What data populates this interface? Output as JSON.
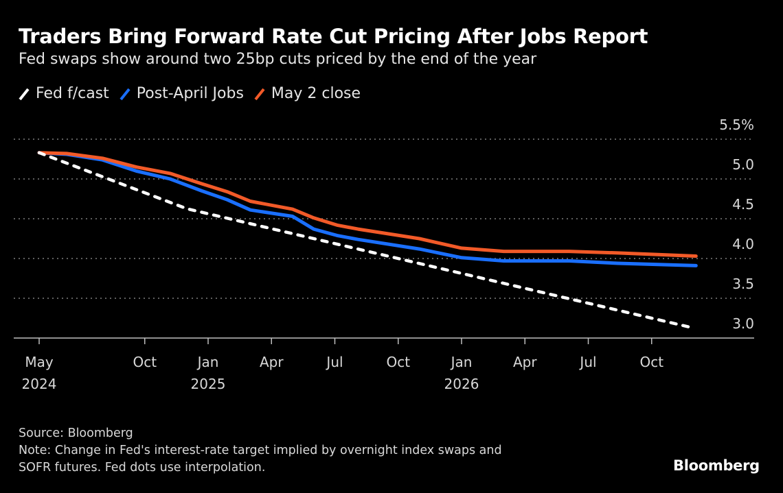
{
  "title": "Traders Bring Forward Rate Cut Pricing After Jobs Report",
  "subtitle": "Fed swaps show around two 25bp cuts priced by the end of the year",
  "footer": {
    "source": "Source: Bloomberg",
    "note_line1": "Note: Change in Fed's interest-rate target implied by overnight index swaps and",
    "note_line2": "SOFR futures. Fed dots use interpolation."
  },
  "logo": "Bloomberg",
  "colors": {
    "fed": "#ffffff",
    "post_april": "#1a6fff",
    "may2": "#f25a28",
    "grid": "#808080",
    "text": "#d9d9d9"
  },
  "chart_data": {
    "type": "line",
    "title": "Traders Bring Forward Rate Cut Pricing After Jobs Report",
    "x_unit": "months since May 2024",
    "xlim": [
      0,
      31
    ],
    "ylim": [
      3.0,
      5.5
    ],
    "y_ticks": [
      {
        "value": 5.5,
        "label": "5.5%"
      },
      {
        "value": 5.0,
        "label": "5.0"
      },
      {
        "value": 4.5,
        "label": "4.5"
      },
      {
        "value": 4.0,
        "label": "4.0"
      },
      {
        "value": 3.5,
        "label": "3.5"
      },
      {
        "value": 3.0,
        "label": "3.0"
      }
    ],
    "x_ticks": [
      {
        "month": 0,
        "label": "May",
        "year": "2024"
      },
      {
        "month": 5,
        "label": "Oct",
        "year": ""
      },
      {
        "month": 8,
        "label": "Jan",
        "year": "2025"
      },
      {
        "month": 11,
        "label": "Apr",
        "year": ""
      },
      {
        "month": 14,
        "label": "Jul",
        "year": ""
      },
      {
        "month": 17,
        "label": "Oct",
        "year": ""
      },
      {
        "month": 20,
        "label": "Jan",
        "year": "2026"
      },
      {
        "month": 23,
        "label": "Apr",
        "year": ""
      },
      {
        "month": 26,
        "label": "Jul",
        "year": ""
      },
      {
        "month": 29,
        "label": "Oct",
        "year": ""
      }
    ],
    "grid": true,
    "legend_position": "top-left",
    "series": [
      {
        "name": "Fed f/cast",
        "color_key": "fed",
        "dashed": true,
        "points": [
          [
            0,
            5.33
          ],
          [
            7,
            4.625
          ],
          [
            19,
            3.875
          ],
          [
            31,
            3.125
          ]
        ]
      },
      {
        "name": "Post-April Jobs",
        "color_key": "post_april",
        "dashed": false,
        "points": [
          [
            0,
            5.33
          ],
          [
            1.3,
            5.31
          ],
          [
            3.0,
            5.24
          ],
          [
            4.6,
            5.1
          ],
          [
            6.2,
            5.0
          ],
          [
            7.7,
            4.85
          ],
          [
            8.9,
            4.74
          ],
          [
            10.0,
            4.61
          ],
          [
            12.0,
            4.53
          ],
          [
            13.0,
            4.37
          ],
          [
            14.1,
            4.29
          ],
          [
            15.1,
            4.24
          ],
          [
            18.0,
            4.12
          ],
          [
            20.0,
            4.01
          ],
          [
            22.0,
            3.97
          ],
          [
            25.1,
            3.97
          ],
          [
            27.4,
            3.94
          ],
          [
            31.1,
            3.91
          ]
        ]
      },
      {
        "name": "May 2 close",
        "color_key": "may2",
        "dashed": false,
        "points": [
          [
            0,
            5.33
          ],
          [
            1.3,
            5.32
          ],
          [
            3.0,
            5.26
          ],
          [
            4.6,
            5.15
          ],
          [
            6.2,
            5.07
          ],
          [
            7.7,
            4.94
          ],
          [
            8.9,
            4.84
          ],
          [
            10.0,
            4.72
          ],
          [
            12.0,
            4.62
          ],
          [
            13.0,
            4.51
          ],
          [
            14.1,
            4.42
          ],
          [
            15.1,
            4.37
          ],
          [
            18.0,
            4.25
          ],
          [
            20.0,
            4.13
          ],
          [
            22.0,
            4.09
          ],
          [
            25.1,
            4.09
          ],
          [
            27.4,
            4.07
          ],
          [
            31.1,
            4.03
          ]
        ]
      }
    ]
  }
}
